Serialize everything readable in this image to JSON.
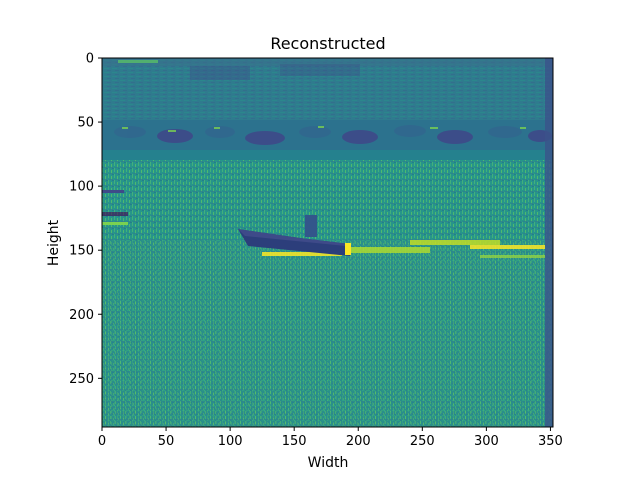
{
  "chart_data": {
    "type": "heatmap",
    "title": "Reconstructed",
    "xlabel": "Width",
    "ylabel": "Height",
    "xlim": [
      0,
      352
    ],
    "ylim": [
      288,
      0
    ],
    "x_ticks": [
      "0",
      "50",
      "100",
      "150",
      "200",
      "250",
      "300",
      "350"
    ],
    "y_ticks": [
      "0",
      "50",
      "100",
      "150",
      "200",
      "250"
    ],
    "x_tick_values": [
      0,
      50,
      100,
      150,
      200,
      250,
      300,
      350
    ],
    "y_tick_values": [
      0,
      50,
      100,
      150,
      200,
      250
    ],
    "colormap": "viridis",
    "image_content": "grayscale reconstruction of a small motorboat on water with a rocky shoreline in the background",
    "colors": {
      "dark": "#3b528b",
      "mid": "#21918c",
      "bright": "#5ec962",
      "highlight": "#fde725"
    }
  }
}
